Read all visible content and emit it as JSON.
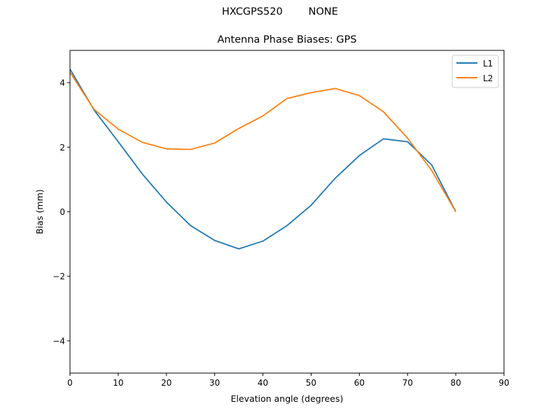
{
  "figure": {
    "suptitle": "HXCGPS520        NONE",
    "title": "Antenna Phase Biases: GPS"
  },
  "chart_data": {
    "type": "line",
    "title": "Antenna Phase Biases: GPS",
    "suptitle": "HXCGPS520        NONE",
    "xlabel": "Elevation angle (degrees)",
    "ylabel": "Bias (mm)",
    "xlim": [
      0,
      90
    ],
    "ylim": [
      -5,
      5
    ],
    "xticks": [
      0,
      10,
      20,
      30,
      40,
      50,
      60,
      70,
      80,
      90
    ],
    "yticks": [
      -4,
      -2,
      0,
      2,
      4
    ],
    "ytick_labels": [
      "−4",
      "−2",
      "0",
      "2",
      "4"
    ],
    "grid": false,
    "legend_position": "upper right",
    "x": [
      0,
      5,
      10,
      15,
      20,
      25,
      30,
      35,
      40,
      45,
      50,
      55,
      60,
      65,
      70,
      75,
      80
    ],
    "series": [
      {
        "name": "L1",
        "color": "#1f77b4",
        "values": [
          4.42,
          3.15,
          2.17,
          1.17,
          0.3,
          -0.43,
          -0.89,
          -1.15,
          -0.91,
          -0.43,
          0.2,
          1.04,
          1.74,
          2.26,
          2.17,
          1.45,
          0.0
        ]
      },
      {
        "name": "L2",
        "color": "#ff7f0e",
        "values": [
          4.32,
          3.17,
          2.56,
          2.15,
          1.95,
          1.93,
          2.13,
          2.58,
          2.97,
          3.51,
          3.69,
          3.82,
          3.6,
          3.1,
          2.28,
          1.28,
          0.0
        ]
      }
    ]
  }
}
